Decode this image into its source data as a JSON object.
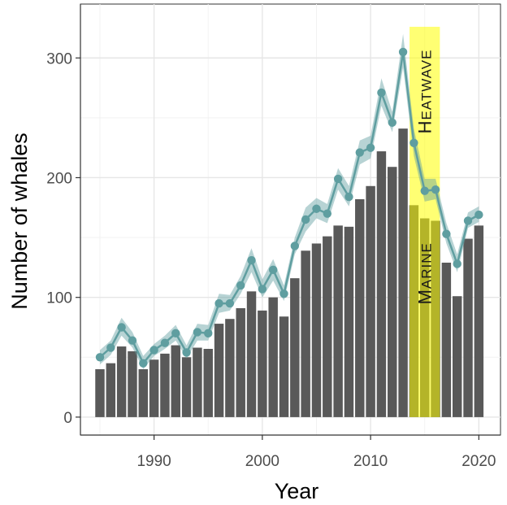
{
  "chart_data": {
    "type": "bar",
    "xlabel": "Year",
    "ylabel": "Number of whales",
    "xlim": [
      1983.2,
      2022
    ],
    "ylim": [
      -15,
      345
    ],
    "xticks": [
      1990,
      2000,
      2010,
      2020
    ],
    "yticks": [
      0,
      100,
      200,
      300
    ],
    "grid": true,
    "x": [
      1985,
      1986,
      1987,
      1988,
      1989,
      1990,
      1991,
      1992,
      1993,
      1994,
      1995,
      1996,
      1997,
      1998,
      1999,
      2000,
      2001,
      2002,
      2003,
      2004,
      2005,
      2006,
      2007,
      2008,
      2009,
      2010,
      2011,
      2012,
      2013,
      2014,
      2015,
      2016,
      2017,
      2018,
      2019,
      2020
    ],
    "series": [
      {
        "kind": "bar",
        "color": "#595959",
        "values": [
          40,
          45,
          59,
          55,
          40,
          48,
          53,
          60,
          50,
          58,
          57,
          78,
          82,
          91,
          105,
          89,
          100,
          84,
          116,
          139,
          145,
          151,
          160,
          159,
          182,
          193,
          222,
          209,
          241,
          177,
          166,
          164,
          129,
          101,
          149,
          160
        ]
      },
      {
        "kind": "line",
        "color": "#5f9ea0",
        "values": [
          50,
          58,
          75,
          64,
          45,
          56,
          62,
          70,
          54,
          71,
          70,
          95,
          95,
          110,
          131,
          107,
          123,
          103,
          143,
          165,
          174,
          170,
          199,
          184,
          221,
          225,
          271,
          246,
          305,
          229,
          189,
          190,
          153,
          128,
          164,
          169
        ],
        "lower": [
          44,
          52,
          68,
          58,
          40,
          51,
          57,
          64,
          49,
          64,
          64,
          87,
          89,
          103,
          121,
          100,
          114,
          97,
          136,
          155,
          166,
          162,
          190,
          176,
          211,
          216,
          260,
          238,
          292,
          218,
          180,
          182,
          145,
          121,
          158,
          163
        ],
        "upper": [
          56,
          64,
          83,
          71,
          51,
          61,
          68,
          77,
          60,
          78,
          77,
          103,
          102,
          118,
          141,
          115,
          132,
          110,
          150,
          175,
          183,
          178,
          208,
          193,
          231,
          235,
          283,
          255,
          320,
          241,
          199,
          199,
          162,
          136,
          171,
          176
        ]
      }
    ],
    "annotation": {
      "x_start": 2013.6,
      "x_end": 2016.4,
      "color": "#ffff00",
      "opacity": 0.55,
      "word1": "Marine",
      "word2": "Heatwave"
    }
  }
}
